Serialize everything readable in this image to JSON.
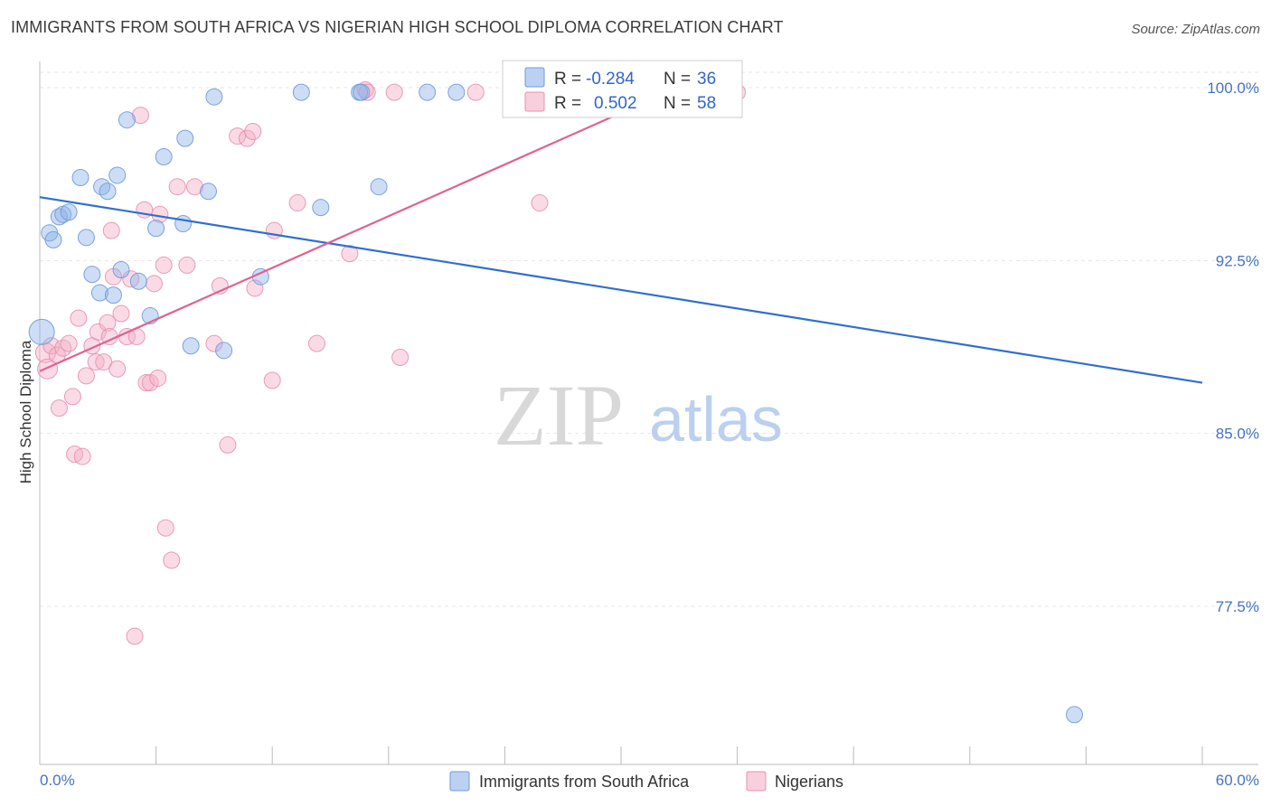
{
  "title": "IMMIGRANTS FROM SOUTH AFRICA VS NIGERIAN HIGH SCHOOL DIPLOMA CORRELATION CHART",
  "source": "Source: ZipAtlas.com",
  "watermark": {
    "zip": "ZIP",
    "atlas": "atlas"
  },
  "chart_data": {
    "type": "scatter",
    "title": "IMMIGRANTS FROM SOUTH AFRICA VS NIGERIAN HIGH SCHOOL DIPLOMA CORRELATION CHART",
    "xlabel": "",
    "ylabel": "High School Diploma",
    "xlim": [
      0,
      60
    ],
    "ylim": [
      71.0,
      101.5
    ],
    "x_tick_labels": {
      "min": "0.0%",
      "max": "60.0%"
    },
    "y_ticks": [
      {
        "value": 100.0,
        "label": "100.0%"
      },
      {
        "value": 92.5,
        "label": "92.5%"
      },
      {
        "value": 85.0,
        "label": "85.0%"
      },
      {
        "value": 77.5,
        "label": "77.5%"
      }
    ],
    "grid": true,
    "legend_position": "top-center",
    "series": [
      {
        "name": "Immigrants from South Africa",
        "color": "#8fb3e8",
        "edge_color": "#6f9ad9",
        "line_color": "#2f6fd0",
        "r_label": "R =",
        "r_value": "-0.284",
        "n_label": "N =",
        "n_value": "36",
        "trend": {
          "x0": 0.0,
          "y0": 95.25,
          "x1": 60.0,
          "y1": 87.2
        },
        "points": [
          [
            0.1,
            89.4,
            14
          ],
          [
            0.5,
            93.7,
            9
          ],
          [
            0.7,
            93.4,
            9
          ],
          [
            1.0,
            94.4,
            9
          ],
          [
            1.2,
            94.5,
            9
          ],
          [
            1.5,
            94.6,
            9
          ],
          [
            2.1,
            96.1,
            9
          ],
          [
            2.4,
            93.5,
            9
          ],
          [
            2.7,
            91.9,
            9
          ],
          [
            3.1,
            91.1,
            9
          ],
          [
            3.2,
            95.7,
            9
          ],
          [
            3.5,
            95.5,
            9
          ],
          [
            3.8,
            91.0,
            9
          ],
          [
            4.0,
            96.2,
            9
          ],
          [
            4.2,
            92.1,
            9
          ],
          [
            4.5,
            98.6,
            9
          ],
          [
            5.1,
            91.6,
            9
          ],
          [
            5.7,
            90.1,
            9
          ],
          [
            6.0,
            93.9,
            9
          ],
          [
            6.4,
            97.0,
            9
          ],
          [
            7.4,
            94.1,
            9
          ],
          [
            7.5,
            97.8,
            9
          ],
          [
            7.8,
            88.8,
            9
          ],
          [
            8.7,
            95.5,
            9
          ],
          [
            9.0,
            99.6,
            9
          ],
          [
            9.5,
            88.6,
            9
          ],
          [
            11.4,
            91.8,
            9
          ],
          [
            13.5,
            99.8,
            9
          ],
          [
            14.5,
            94.8,
            9
          ],
          [
            16.5,
            99.8,
            9
          ],
          [
            16.6,
            99.8,
            9
          ],
          [
            17.5,
            95.7,
            9
          ],
          [
            20.0,
            99.8,
            9
          ],
          [
            21.5,
            99.8,
            9
          ],
          [
            33.1,
            99.8,
            9
          ],
          [
            53.4,
            72.8,
            9
          ]
        ]
      },
      {
        "name": "Nigerians",
        "color": "#f4afc6",
        "edge_color": "#e890ae",
        "line_color": "#e0628f",
        "r_label": "R =",
        "r_value": "0.502",
        "n_label": "N =",
        "n_value": "58",
        "trend": {
          "x0": 0.0,
          "y0": 87.7,
          "x1": 34.0,
          "y1": 100.4
        },
        "points": [
          [
            0.3,
            88.5,
            11
          ],
          [
            0.4,
            87.8,
            11
          ],
          [
            0.6,
            88.8,
            9
          ],
          [
            0.9,
            88.4,
            9
          ],
          [
            1.0,
            86.1,
            9
          ],
          [
            1.2,
            88.7,
            9
          ],
          [
            1.5,
            88.9,
            9
          ],
          [
            1.7,
            86.6,
            9
          ],
          [
            1.8,
            84.1,
            9
          ],
          [
            2.0,
            90.0,
            9
          ],
          [
            2.2,
            84.0,
            9
          ],
          [
            2.4,
            87.5,
            9
          ],
          [
            2.7,
            88.8,
            9
          ],
          [
            2.9,
            88.1,
            9
          ],
          [
            3.0,
            89.4,
            9
          ],
          [
            3.3,
            88.1,
            9
          ],
          [
            3.5,
            89.8,
            9
          ],
          [
            3.6,
            89.2,
            9
          ],
          [
            3.7,
            93.8,
            9
          ],
          [
            3.8,
            91.8,
            9
          ],
          [
            4.0,
            87.8,
            9
          ],
          [
            4.2,
            90.2,
            9
          ],
          [
            4.5,
            89.2,
            9
          ],
          [
            4.7,
            91.7,
            9
          ],
          [
            4.9,
            76.2,
            9
          ],
          [
            5.0,
            89.2,
            9
          ],
          [
            5.2,
            98.8,
            9
          ],
          [
            5.4,
            94.7,
            9
          ],
          [
            5.5,
            87.2,
            9
          ],
          [
            5.7,
            87.2,
            9
          ],
          [
            5.9,
            91.5,
            9
          ],
          [
            6.1,
            87.4,
            9
          ],
          [
            6.2,
            94.5,
            9
          ],
          [
            6.4,
            92.3,
            9
          ],
          [
            6.5,
            80.9,
            9
          ],
          [
            6.8,
            79.5,
            9
          ],
          [
            7.1,
            95.7,
            9
          ],
          [
            7.6,
            92.3,
            9
          ],
          [
            8.0,
            95.7,
            9
          ],
          [
            9.0,
            88.9,
            9
          ],
          [
            9.3,
            91.4,
            9
          ],
          [
            9.7,
            84.5,
            9
          ],
          [
            10.2,
            97.9,
            9
          ],
          [
            10.7,
            97.8,
            9
          ],
          [
            11.0,
            98.1,
            9
          ],
          [
            11.1,
            91.3,
            9
          ],
          [
            12.0,
            87.3,
            9
          ],
          [
            12.1,
            93.8,
            9
          ],
          [
            13.3,
            95.0,
            9
          ],
          [
            14.3,
            88.9,
            9
          ],
          [
            16.0,
            92.8,
            9
          ],
          [
            16.8,
            99.9,
            9
          ],
          [
            16.9,
            99.8,
            9
          ],
          [
            18.3,
            99.8,
            9
          ],
          [
            18.6,
            88.3,
            9
          ],
          [
            22.5,
            99.8,
            9
          ],
          [
            25.8,
            95.0,
            9
          ],
          [
            36.0,
            99.8,
            9
          ]
        ]
      }
    ]
  }
}
